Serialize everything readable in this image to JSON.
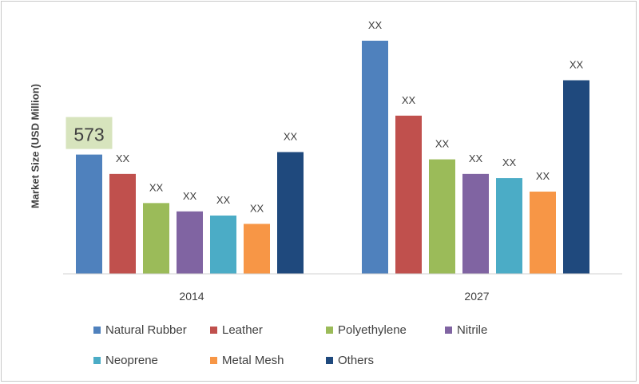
{
  "chart_data": {
    "type": "bar",
    "title": "",
    "xlabel": "",
    "ylabel": "Market Size (USD Million)",
    "categories": [
      "2014",
      "2027"
    ],
    "grid": false,
    "legend_position": "bottom",
    "series": [
      {
        "name": "Natural Rubber",
        "color": "#4f81bd",
        "values": [
          573,
          1120
        ],
        "labels": [
          "573",
          "XX"
        ]
      },
      {
        "name": "Leather",
        "color": "#c0504d",
        "values": [
          480,
          760
        ],
        "labels": [
          "XX",
          "XX"
        ]
      },
      {
        "name": "Polyethylene",
        "color": "#9bbb59",
        "values": [
          340,
          550
        ],
        "labels": [
          "XX",
          "XX"
        ]
      },
      {
        "name": "Nitrile",
        "color": "#8064a2",
        "values": [
          300,
          480
        ],
        "labels": [
          "XX",
          "XX"
        ]
      },
      {
        "name": "Neoprene",
        "color": "#4bacc6",
        "values": [
          280,
          460
        ],
        "labels": [
          "XX",
          "XX"
        ]
      },
      {
        "name": "Metal Mesh",
        "color": "#f79646",
        "values": [
          240,
          395
        ],
        "labels": [
          "XX",
          "XX"
        ]
      },
      {
        "name": "Others",
        "color": "#1f497d",
        "values": [
          585,
          930
        ],
        "labels": [
          "XX",
          "XX"
        ]
      }
    ]
  }
}
